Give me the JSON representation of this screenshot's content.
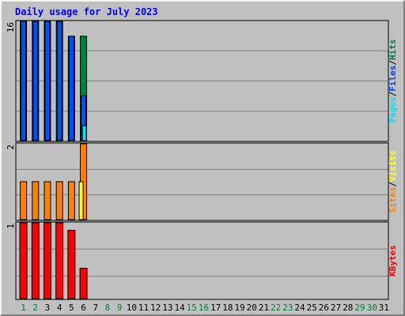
{
  "chart_data": {
    "type": "bar",
    "title": "Daily usage for July 2023",
    "x": {
      "labels": [
        "1",
        "2",
        "3",
        "4",
        "5",
        "6",
        "7",
        "8",
        "9",
        "10",
        "11",
        "12",
        "13",
        "14",
        "15",
        "16",
        "17",
        "18",
        "19",
        "20",
        "21",
        "22",
        "23",
        "24",
        "25",
        "26",
        "27",
        "28",
        "29",
        "30",
        "31"
      ],
      "weekend_days": [
        1,
        2,
        8,
        9,
        15,
        16,
        22,
        23,
        29,
        30
      ]
    },
    "panels": [
      {
        "id": "hits",
        "y_max_label": "16",
        "ylim": [
          0,
          16
        ],
        "legend": [
          "Pages",
          "Files",
          "Hits"
        ],
        "legend_colors": [
          "#00e0ff",
          "#0040ff",
          "#008040"
        ],
        "grid": true,
        "series": [
          {
            "name": "Hits",
            "color": "#008040",
            "values": [
              16,
              16,
              16,
              16,
              14,
              14,
              0,
              0,
              0,
              0,
              0,
              0,
              0,
              0,
              0,
              0,
              0,
              0,
              0,
              0,
              0,
              0,
              0,
              0,
              0,
              0,
              0,
              0,
              0,
              0,
              0
            ]
          },
          {
            "name": "Files",
            "color": "#0050ff",
            "values": [
              16,
              16,
              16,
              16,
              14,
              6,
              0,
              0,
              0,
              0,
              0,
              0,
              0,
              0,
              0,
              0,
              0,
              0,
              0,
              0,
              0,
              0,
              0,
              0,
              0,
              0,
              0,
              0,
              0,
              0,
              0
            ]
          },
          {
            "name": "Pages",
            "color": "#00e0ff",
            "values": [
              0,
              0,
              0,
              0,
              0,
              2,
              0,
              0,
              0,
              0,
              0,
              0,
              0,
              0,
              0,
              0,
              0,
              0,
              0,
              0,
              0,
              0,
              0,
              0,
              0,
              0,
              0,
              0,
              0,
              0,
              0
            ]
          }
        ]
      },
      {
        "id": "visits",
        "y_max_label": "2",
        "ylim": [
          0,
          2
        ],
        "legend": [
          "Sites",
          "Visits"
        ],
        "legend_colors": [
          "#ff8000",
          "#ffff00"
        ],
        "grid": true,
        "series": [
          {
            "name": "Sites",
            "color": "#ff8000",
            "values": [
              1,
              1,
              1,
              1,
              1,
              2,
              0,
              0,
              0,
              0,
              0,
              0,
              0,
              0,
              0,
              0,
              0,
              0,
              0,
              0,
              0,
              0,
              0,
              0,
              0,
              0,
              0,
              0,
              0,
              0,
              0
            ]
          },
          {
            "name": "Visits",
            "color": "#ffff00",
            "values": [
              0,
              0,
              0,
              0,
              0,
              1,
              0,
              0,
              0,
              0,
              0,
              0,
              0,
              0,
              0,
              0,
              0,
              0,
              0,
              0,
              0,
              0,
              0,
              0,
              0,
              0,
              0,
              0,
              0,
              0,
              0
            ]
          }
        ]
      },
      {
        "id": "kbytes",
        "y_max_label": "1",
        "ylim": [
          0,
          1
        ],
        "legend": [
          "KBytes"
        ],
        "legend_colors": [
          "#ff0000"
        ],
        "grid": true,
        "series": [
          {
            "name": "KBytes",
            "color": "#ff0000",
            "values": [
              1,
              1,
              1,
              1,
              0.9,
              0.4,
              0,
              0,
              0,
              0,
              0,
              0,
              0,
              0,
              0,
              0,
              0,
              0,
              0,
              0,
              0,
              0,
              0,
              0,
              0,
              0,
              0,
              0,
              0,
              0,
              0
            ]
          }
        ]
      }
    ],
    "colors": {
      "title": "#0000ff",
      "panel_bg": "#c0c0c0",
      "grid": "#808080",
      "weekend_label": "#008040",
      "weekday_label": "#000000",
      "bar_outline": "#000000"
    }
  }
}
